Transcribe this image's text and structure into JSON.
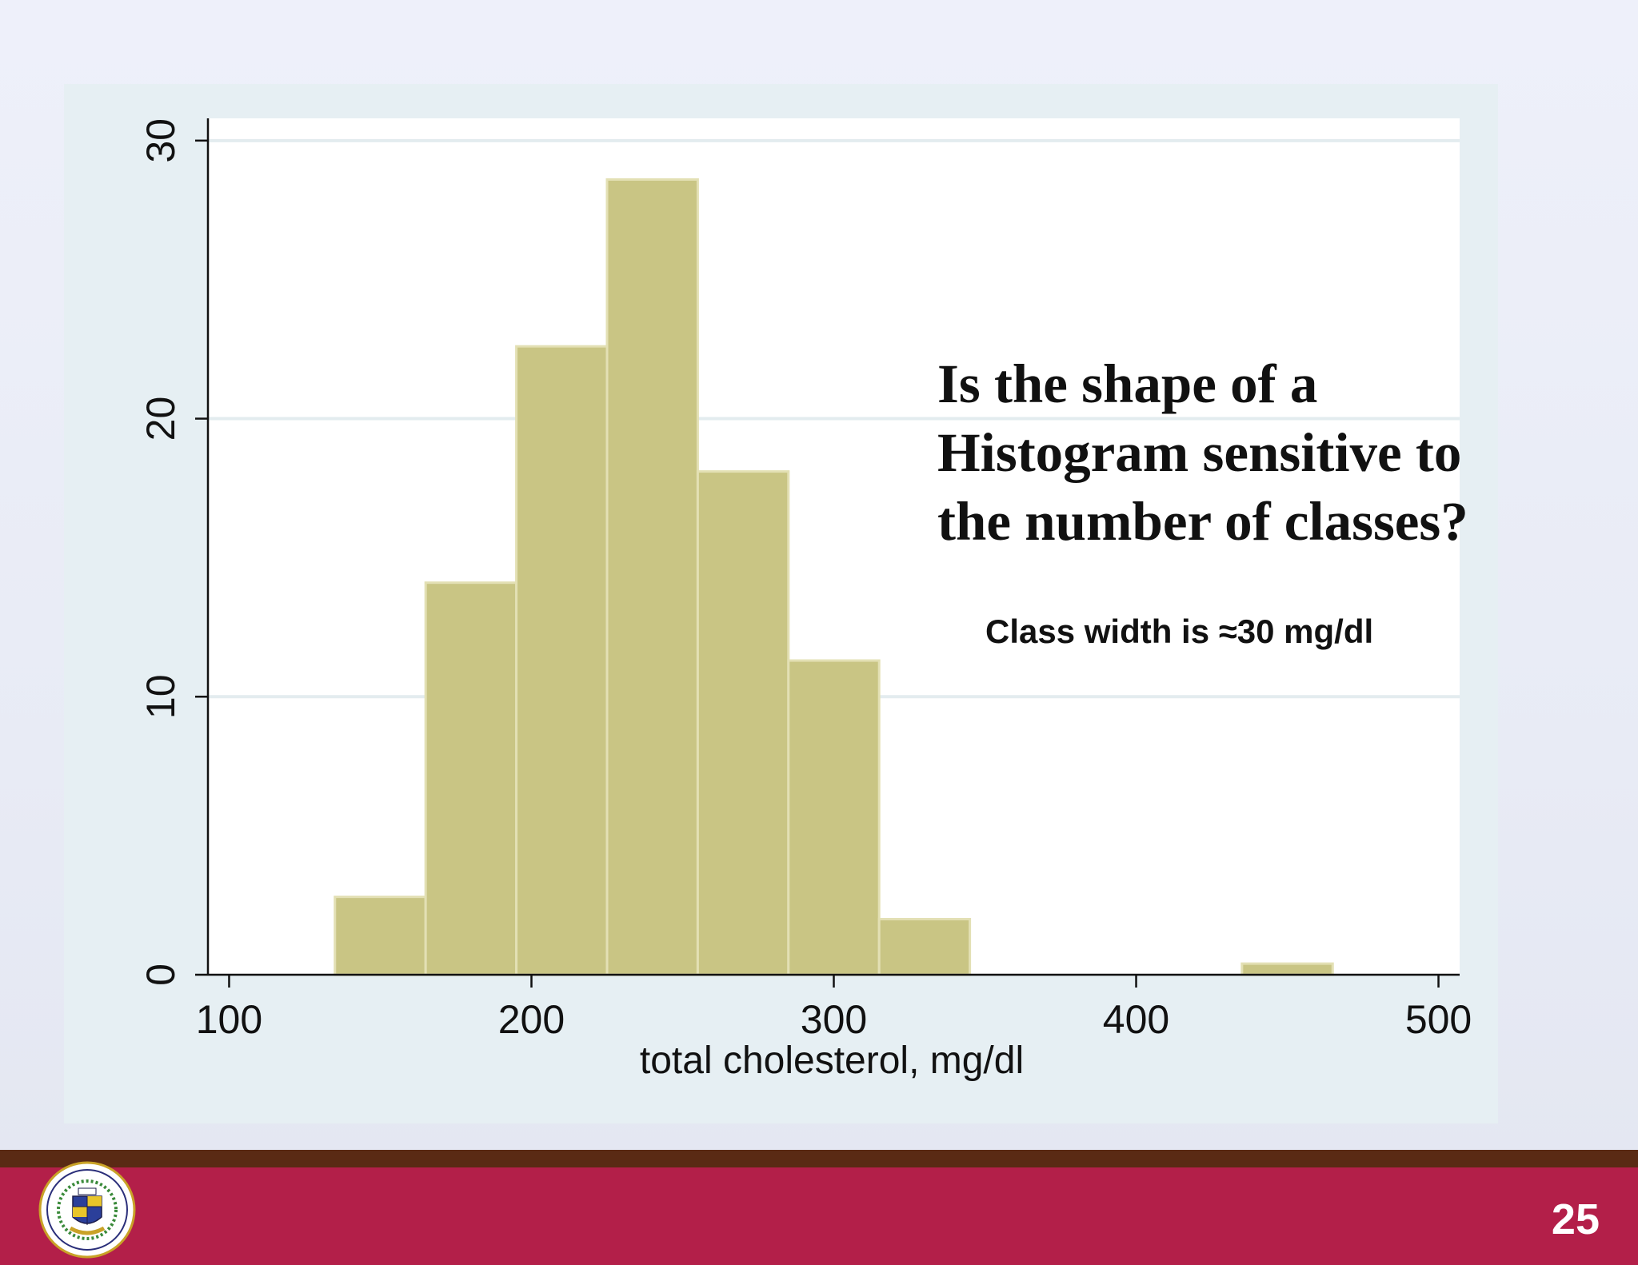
{
  "slide": {
    "question_lines": [
      "Is the shape of a",
      "Histogram sensitive to",
      "the number of classes?"
    ],
    "note": "Class width is ≈30 mg/dl",
    "slide_number": "25",
    "logo_icon": "university-seal-icon",
    "colors": {
      "footer_bar": "#b31f49",
      "footer_strip": "#5a2a14",
      "bar_fill": "#c9c584",
      "bar_edge": "#e3e0b4"
    }
  },
  "chart_data": {
    "type": "bar",
    "title": "",
    "xlabel": "total cholesterol, mg/dl",
    "ylabel": "",
    "x_ticks": [
      100,
      200,
      300,
      400,
      500
    ],
    "y_ticks": [
      0,
      10,
      20,
      30
    ],
    "xlim": [
      93,
      507
    ],
    "ylim": [
      0,
      30.8
    ],
    "grid": true,
    "bins": [
      {
        "start": 135,
        "end": 165,
        "value": 2.8
      },
      {
        "start": 165,
        "end": 195,
        "value": 14.1
      },
      {
        "start": 195,
        "end": 225,
        "value": 22.6
      },
      {
        "start": 225,
        "end": 255,
        "value": 28.6
      },
      {
        "start": 255,
        "end": 285,
        "value": 18.1
      },
      {
        "start": 285,
        "end": 315,
        "value": 11.3
      },
      {
        "start": 315,
        "end": 345,
        "value": 2.0
      },
      {
        "start": 435,
        "end": 465,
        "value": 0.4
      }
    ]
  }
}
